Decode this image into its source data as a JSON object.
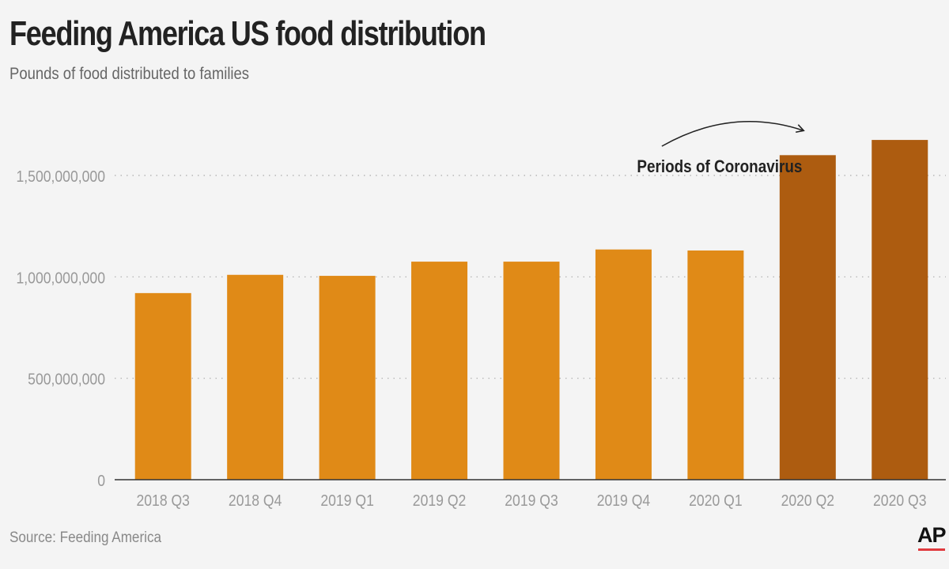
{
  "header": {
    "title": "Feeding America US food distribution",
    "subtitle": "Pounds of food distributed to families"
  },
  "footer": {
    "source": "Source: Feeding America",
    "logo_text": "AP"
  },
  "colors": {
    "bar_regular": "#e08a17",
    "bar_covid": "#ad5c10",
    "grid": "#aaaaaa",
    "axis": "#333333",
    "tick_label": "#999999",
    "logo_accent": "#e03a3e"
  },
  "chart_data": {
    "type": "bar",
    "title": "Feeding America US food distribution",
    "subtitle": "Pounds of food distributed to families",
    "xlabel": "",
    "ylabel": "",
    "categories": [
      "2018 Q3",
      "2018 Q4",
      "2019 Q1",
      "2019 Q2",
      "2019 Q3",
      "2019 Q4",
      "2020 Q1",
      "2020 Q2",
      "2020 Q3"
    ],
    "values": [
      920000000,
      1010000000,
      1005000000,
      1075000000,
      1075000000,
      1135000000,
      1130000000,
      1600000000,
      1675000000
    ],
    "highlight": [
      false,
      false,
      false,
      false,
      false,
      false,
      false,
      true,
      true
    ],
    "ylim": [
      0,
      1800000000
    ],
    "yticks": [
      0,
      500000000,
      1000000000,
      1500000000
    ],
    "ytick_labels": [
      "0",
      "500,000,000",
      "1,000,000,000",
      "1,500,000,000"
    ],
    "grid": true,
    "annotation": {
      "text": "Periods of Coronavirus",
      "anchor_category": "2020 Q1",
      "target_category": "2020 Q2"
    }
  }
}
